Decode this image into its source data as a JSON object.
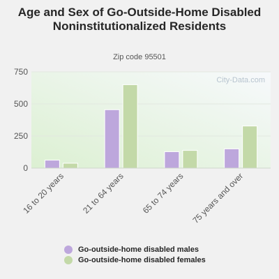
{
  "title": "Age and Sex of Go-Outside-Home Disabled Noninstitutionalized Residents",
  "subtitle": "Zip code 95501",
  "watermark": "City-Data.com",
  "colors": {
    "males": "#bda7dc",
    "females": "#c3d9a8"
  },
  "chart_data": {
    "type": "bar",
    "categories": [
      "16 to 20 years",
      "21 to 64 years",
      "65 to 74 years",
      "75 years and over"
    ],
    "series": [
      {
        "name": "Go-outside-home disabled males",
        "values": [
          62,
          455,
          128,
          150
        ]
      },
      {
        "name": "Go-outside-home disabled females",
        "values": [
          38,
          650,
          138,
          328
        ]
      }
    ],
    "yticks": [
      0,
      250,
      500,
      750
    ],
    "ylim": [
      0,
      750
    ],
    "grid": true,
    "legend": "bottom"
  }
}
